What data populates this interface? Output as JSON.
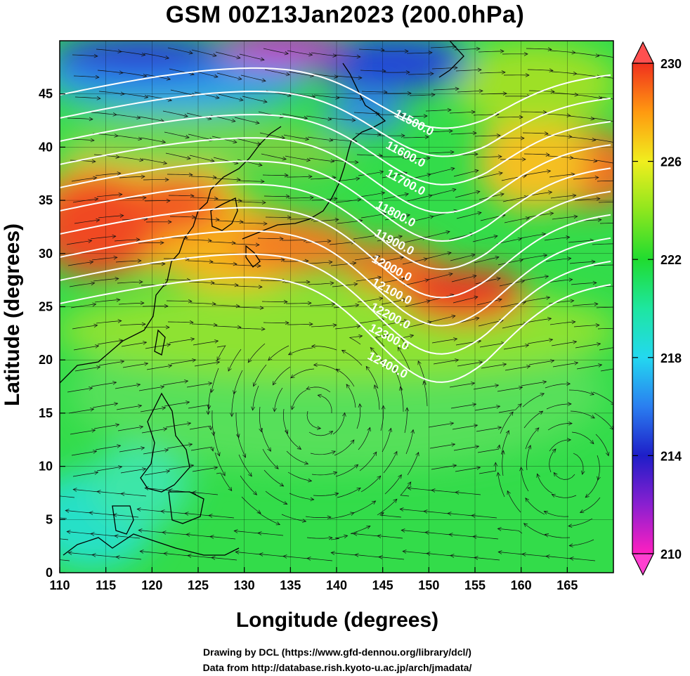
{
  "title": "GSM 00Z13Jan2023 (200.0hPa)",
  "x_axis_label": "Longitude (degrees)",
  "y_axis_label": "Latitude  (degrees)",
  "credit_lines": [
    "Drawing by DCL (https://www.gfd-dennou.org/library/dcl/)",
    "Data from http://database.rish.kyoto-u.ac.jp/arch/jmadata/"
  ],
  "map": {
    "lon_range": [
      110,
      170
    ],
    "lat_range": [
      0,
      50
    ],
    "x_ticks": [
      "110",
      "115",
      "120",
      "125",
      "130",
      "135",
      "140",
      "145",
      "150",
      "155",
      "160",
      "165"
    ],
    "y_ticks": [
      "0",
      "5",
      "10",
      "15",
      "20",
      "25",
      "30",
      "35",
      "40",
      "45"
    ],
    "grid": true
  },
  "colorbar": {
    "min": 210,
    "max": 230,
    "labels": [
      "230",
      "226",
      "222",
      "218",
      "214",
      "210"
    ],
    "colors": [
      "#ff1fc0",
      "#8a1fd0",
      "#1e1ec8",
      "#2a7ef0",
      "#23d8f0",
      "#1ee6a0",
      "#20dc30",
      "#8ee61e",
      "#f0ee1e",
      "#ff9a10",
      "#f0301e"
    ],
    "arrow_colors": {
      "top": "#ff5050",
      "bottom": "#ff40d0"
    }
  },
  "contours": {
    "labels": [
      "11500.0",
      "11600.0",
      "11700.0",
      "11800.0",
      "11900.0",
      "12000.0",
      "12100.0",
      "12200.0",
      "12300.0",
      "12400.0"
    ]
  }
}
